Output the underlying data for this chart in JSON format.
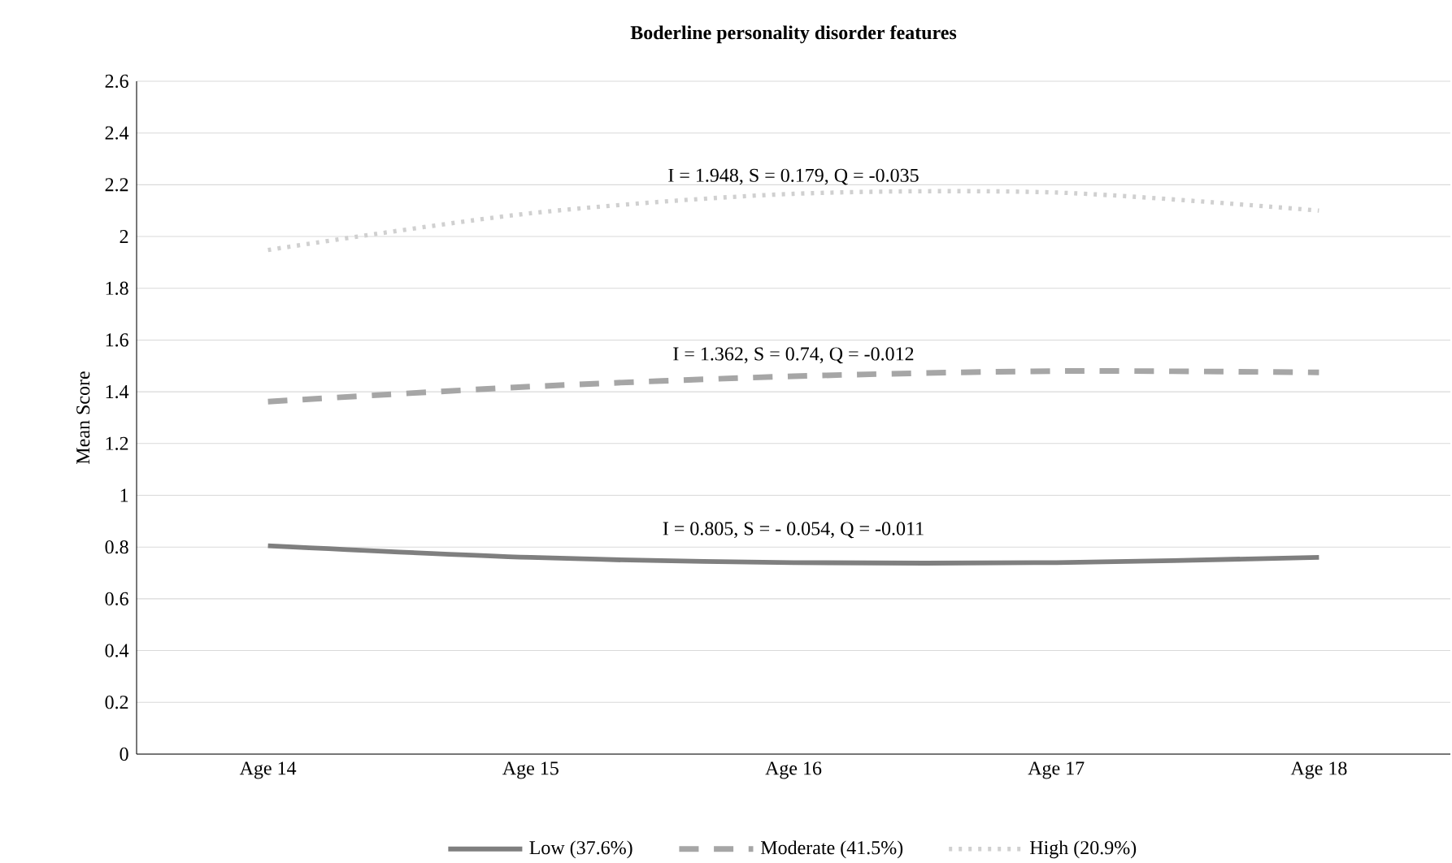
{
  "chart_data": {
    "type": "line",
    "title": "Boderline personality disorder features",
    "ylabel": "Mean Score",
    "categories": [
      "Age 14",
      "Age 15",
      "Age 16",
      "Age 17",
      "Age 18"
    ],
    "series": [
      {
        "name": "Low (37.6%)",
        "color": "#7f7f7f",
        "line_style": "solid",
        "values": [
          0.805,
          0.76,
          0.74,
          0.74,
          0.76
        ]
      },
      {
        "name": "Moderate (41.5%)",
        "color": "#a6a6a6",
        "line_style": "dashed",
        "values": [
          1.362,
          1.42,
          1.46,
          1.48,
          1.475
        ]
      },
      {
        "name": "High (20.9%)",
        "color": "#d0d0d0",
        "line_style": "dotted",
        "values": [
          1.948,
          2.09,
          2.165,
          2.17,
          2.1
        ]
      }
    ],
    "annotations": [
      "I = 0.805, S = - 0.054, Q = -0.011",
      "I = 1.362, S = 0.74, Q = -0.012",
      "I = 1.948, S = 0.179, Q = -0.035"
    ],
    "ylim": [
      0,
      2.6
    ],
    "yticks": [
      0,
      0.2,
      0.4,
      0.6,
      0.8,
      1,
      1.2,
      1.4,
      1.6,
      1.8,
      2,
      2.2,
      2.4,
      2.6
    ],
    "grid": "y",
    "legend": "bottom",
    "marker": "none"
  }
}
